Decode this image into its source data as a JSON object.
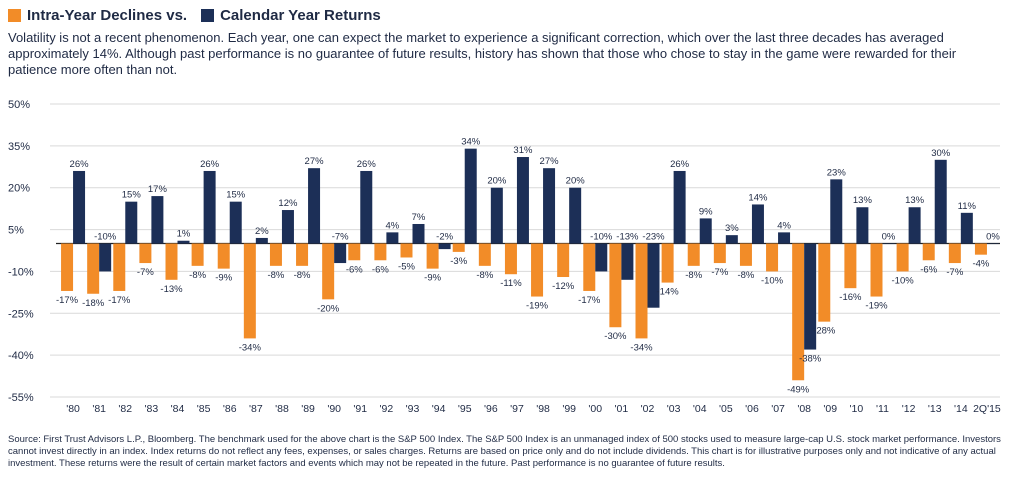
{
  "legend": {
    "declines_label": "Intra-Year Declines vs.",
    "returns_label": "Calendar Year Returns"
  },
  "intro_text": "Volatility is not a recent phenomenon. Each year, one can expect the market to experience a significant correction, which over the last three decades has averaged approximately 14%. Although past performance is no guarantee of future results, history has shown that those who chose to stay in the game were rewarded for their patience more often than not.",
  "footnote": "Source: First Trust Advisors L.P., Bloomberg. The benchmark used for the above chart is the S&P 500 Index. The S&P 500 Index is an unmanaged index of 500 stocks used to measure large-cap U.S. stock market performance. Investors cannot invest directly in an index. Index returns do not reflect any fees, expenses, or sales charges. Returns are based on price only and do not include dividends. This chart is for illustrative purposes only and not indicative of any actual investment. These returns were the result of certain market factors and events which may not be repeated in the future. Past performance is no guarantee of future results.",
  "colors": {
    "declines": "#f28c28",
    "returns": "#1c2f57",
    "text": "#1f2a44",
    "grid": "#d9d9d9"
  },
  "chart_data": {
    "type": "bar",
    "grid": true,
    "ylim": [
      -55,
      50
    ],
    "yticks": [
      50,
      35,
      20,
      5,
      -10,
      -25,
      -40,
      -55
    ],
    "ytick_labels": [
      "50%",
      "35%",
      "20%",
      "5%",
      "-10%",
      "-25%",
      "-40%",
      "-55%"
    ],
    "categories": [
      "'80",
      "'81",
      "'82",
      "'83",
      "'84",
      "'85",
      "'86",
      "'87",
      "'88",
      "'89",
      "'90",
      "'91",
      "'92",
      "'93",
      "'94",
      "'95",
      "'96",
      "'97",
      "'98",
      "'99",
      "'00",
      "'01",
      "'02",
      "'03",
      "'04",
      "'05",
      "'06",
      "'07",
      "'08",
      "'09",
      "'10",
      "'11",
      "'12",
      "'13",
      "'14",
      "2Q'15"
    ],
    "series": [
      {
        "name": "Intra-Year Declines",
        "values": [
          -17,
          -18,
          -17,
          -7,
          -13,
          -8,
          -9,
          -34,
          -8,
          -8,
          -20,
          -6,
          -6,
          -5,
          -9,
          -3,
          -8,
          -11,
          -19,
          -12,
          -17,
          -30,
          -34,
          -14,
          -8,
          -7,
          -8,
          -10,
          -49,
          -28,
          -16,
          -19,
          -10,
          -6,
          -7,
          -4
        ],
        "labels": [
          "-17%",
          "-18%",
          "-17%",
          "-7%",
          "-13%",
          "-8%",
          "-9%",
          "-34%",
          "-8%",
          "-8%",
          "-20%",
          "-6%",
          "-6%",
          "-5%",
          "-9%",
          "-3%",
          "-8%",
          "-11%",
          "-19%",
          "-12%",
          "-17%",
          "-30%",
          "-34%",
          "-14%",
          "-8%",
          "-7%",
          "-8%",
          "-10%",
          "-49%",
          "-28%",
          "-16%",
          "-19%",
          "-10%",
          "-6%",
          "-7%",
          "-4%"
        ]
      },
      {
        "name": "Calendar Year Returns",
        "values": [
          26,
          -10,
          15,
          17,
          1,
          26,
          15,
          2,
          12,
          27,
          -7,
          26,
          4,
          7,
          -2,
          34,
          20,
          31,
          27,
          20,
          -10,
          -13,
          -23,
          26,
          9,
          3,
          14,
          4,
          -38,
          23,
          13,
          0,
          13,
          30,
          11,
          0
        ],
        "labels": [
          "26%",
          "-10%",
          "15%",
          "17%",
          "1%",
          "26%",
          "15%",
          "2%",
          "12%",
          "27%",
          "-7%",
          "26%",
          "4%",
          "7%",
          "-2%",
          "34%",
          "20%",
          "31%",
          "27%",
          "20%",
          "-10%",
          "-13%",
          "-23%",
          "26%",
          "9%",
          "3%",
          "14%",
          "4%",
          "-38%",
          "23%",
          "13%",
          "0%",
          "13%",
          "30%",
          "11%",
          "0%"
        ]
      }
    ]
  }
}
